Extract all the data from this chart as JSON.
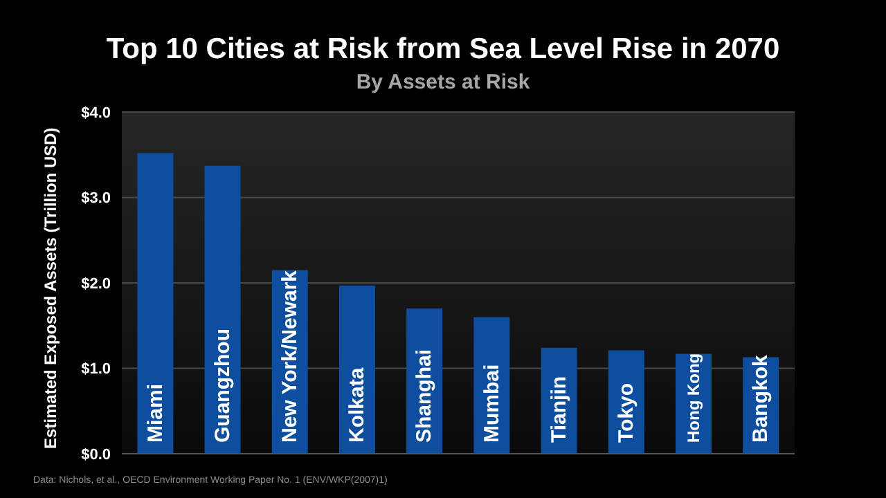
{
  "chart_data": {
    "type": "bar",
    "title": "Top 10 Cities at Risk from Sea Level Rise in 2070",
    "subtitle": "By Assets at Risk",
    "ylabel": "Estimated Exposed Assets (Trillion USD)",
    "categories": [
      "Miami",
      "Guangzhou",
      "New York/Newark",
      "Kolkata",
      "Shanghai",
      "Mumbai",
      "Tianjin",
      "Tokyo",
      "Hong Kong",
      "Bangkok"
    ],
    "values": [
      3.52,
      3.37,
      2.15,
      1.97,
      1.7,
      1.6,
      1.24,
      1.21,
      1.17,
      1.13
    ],
    "color": "#0d4f9e",
    "ylim": [
      0,
      4
    ],
    "yticks": [
      {
        "value": 0,
        "label": "$0.0"
      },
      {
        "value": 1,
        "label": "$1.0"
      },
      {
        "value": 2,
        "label": "$2.0"
      },
      {
        "value": 3,
        "label": "$3.0"
      },
      {
        "value": 4,
        "label": "$4.0"
      }
    ],
    "grid": "y",
    "annotations": [
      "Data: Nichols, et al., OECD Environment Working Paper No. 1 (ENV/WKP(2007)1)"
    ]
  }
}
